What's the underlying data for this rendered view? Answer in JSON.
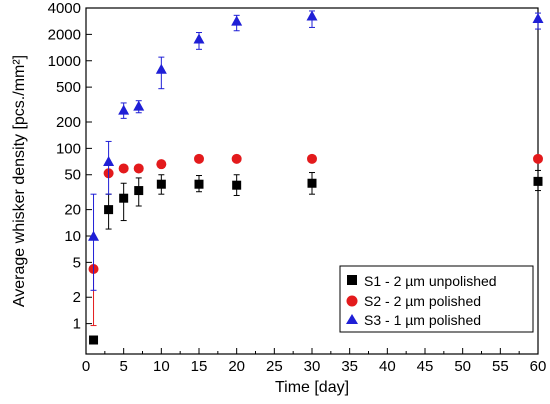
{
  "chart_data": {
    "type": "scatter",
    "xlabel": "Time [day]",
    "ylabel": "Average whisker density [pcs./mm²]",
    "xlim": [
      0,
      60
    ],
    "ylim": [
      0.45,
      4000
    ],
    "y_scale": "log",
    "grid": false,
    "legend_position": "bottom-right",
    "x_ticks": [
      0,
      5,
      10,
      15,
      20,
      25,
      30,
      35,
      40,
      45,
      50,
      55,
      60
    ],
    "y_ticks": [
      1,
      2,
      5,
      10,
      20,
      50,
      100,
      200,
      500,
      1000,
      2000,
      4000
    ],
    "series": [
      {
        "name": "S1 - 2 µm unpolished",
        "marker": "square",
        "color": "#000000",
        "x": [
          1,
          3,
          5,
          7,
          10,
          15,
          20,
          30,
          60
        ],
        "y": [
          0.65,
          20,
          27,
          33,
          39,
          39,
          38,
          40,
          42
        ],
        "err_low": [
          0.65,
          12,
          15,
          22,
          30,
          32,
          29,
          30,
          33
        ],
        "err_high": [
          0.65,
          30,
          40,
          46,
          50,
          49,
          50,
          53,
          56
        ]
      },
      {
        "name": "S2 - 2 µm polished",
        "marker": "circle",
        "color": "#e31a1c",
        "x": [
          1,
          3,
          5,
          7,
          10,
          15,
          20,
          30,
          60
        ],
        "y": [
          4.2,
          52,
          59,
          59,
          66,
          76,
          76,
          76,
          76
        ],
        "err_low": [
          0.95,
          52,
          59,
          59,
          66,
          70,
          70,
          70,
          70
        ],
        "err_high": [
          4.2,
          52,
          59,
          59,
          66,
          82,
          82,
          82,
          82
        ]
      },
      {
        "name": "S3 - 1 µm polished",
        "marker": "triangle",
        "color": "#1f1fd6",
        "x": [
          1,
          3,
          5,
          7,
          10,
          15,
          20,
          30,
          60
        ],
        "y": [
          9.8,
          70,
          270,
          300,
          790,
          1750,
          2800,
          3200,
          3000
        ],
        "err_low": [
          2.4,
          30,
          220,
          255,
          480,
          1350,
          2200,
          2400,
          2300
        ],
        "err_high": [
          30,
          120,
          330,
          350,
          1100,
          2100,
          3300,
          3700,
          3500
        ]
      }
    ]
  }
}
